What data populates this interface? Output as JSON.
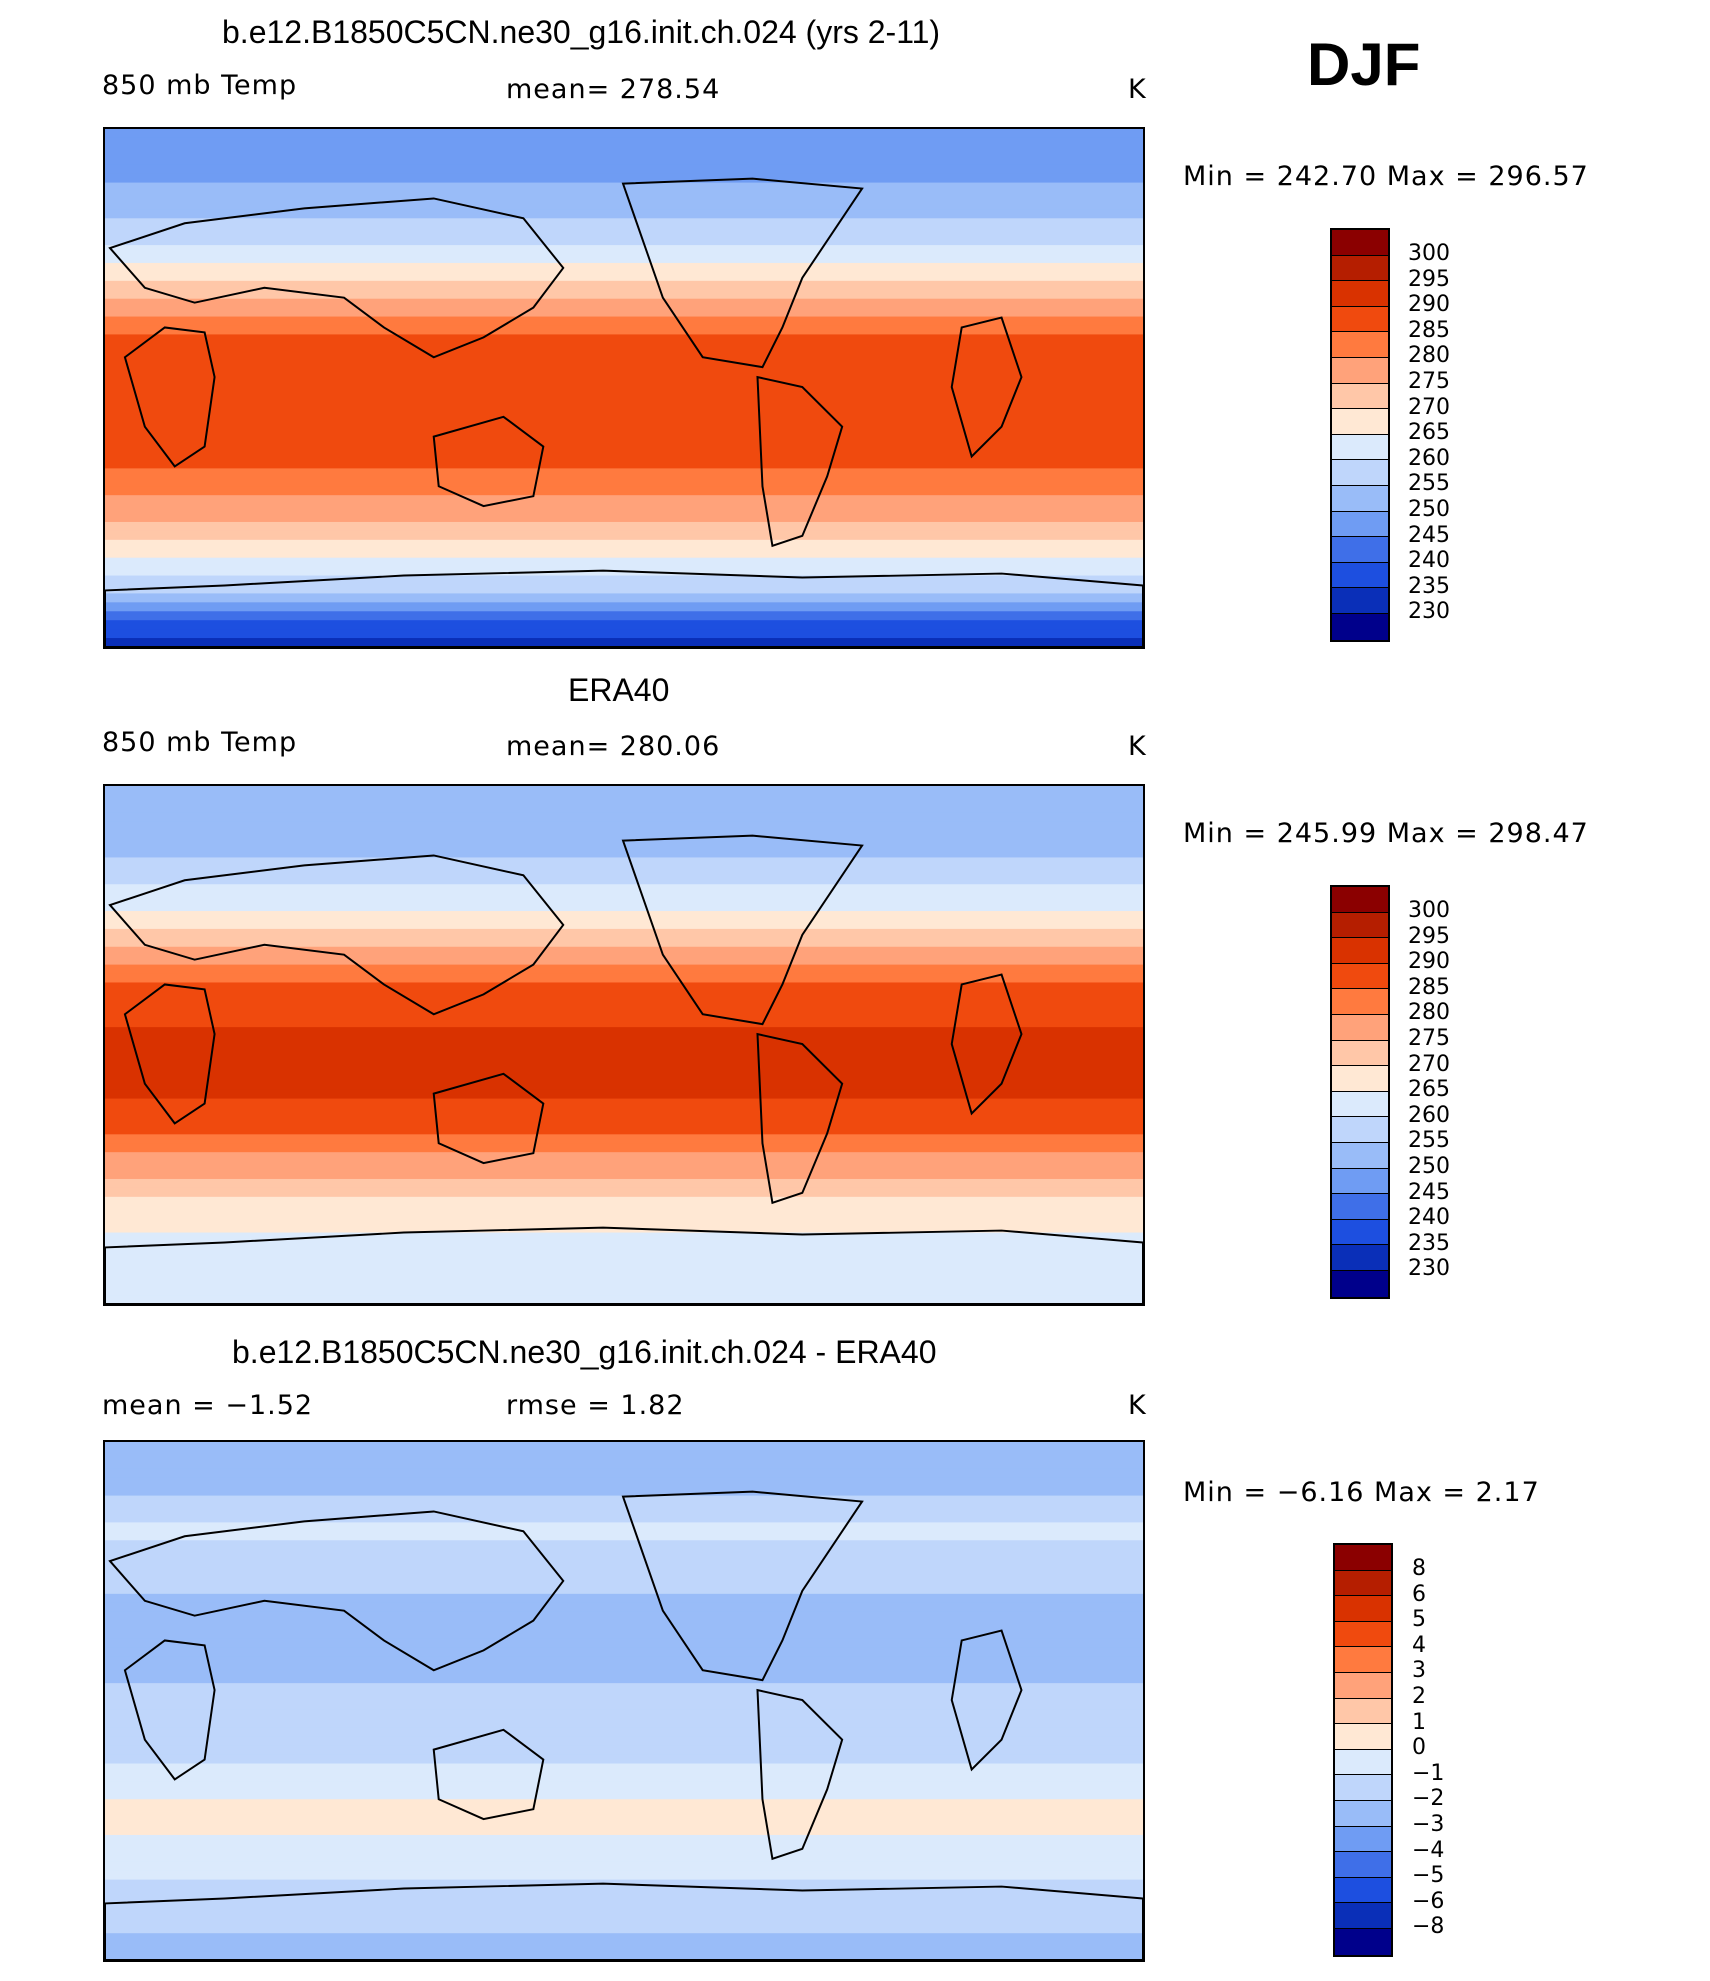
{
  "season": "DJF",
  "chart_data": [
    {
      "type": "heatmap",
      "title": "b.e12.B1850C5CN.ne30_g16.init.ch.024 (yrs 2-11)",
      "left_label": "850 mb Temp",
      "stat_label": "mean=  278.54",
      "units": "K",
      "minmax": "Min  =  242.70  Max  =  296.57",
      "min": 242.7,
      "max": 296.57,
      "mean": 278.54,
      "levels": [
        "300",
        "295",
        "290",
        "285",
        "280",
        "275",
        "270",
        "265",
        "260",
        "255",
        "250",
        "245",
        "240",
        "235",
        "230"
      ],
      "colors": [
        "#8b0000",
        "#b51e00",
        "#d93200",
        "#f04a0e",
        "#ff7a3f",
        "#ffa27a",
        "#ffc7a8",
        "#ffe8d4",
        "#dbeafc",
        "#bfd6fb",
        "#99bcf8",
        "#6f9cf3",
        "#3f6fe8",
        "#1d4fe0",
        "#0a2fb8",
        "#00008b"
      ],
      "lat_profile": [
        [
          -90,
          230
        ],
        [
          -75,
          248
        ],
        [
          -65,
          262
        ],
        [
          -55,
          268
        ],
        [
          -45,
          275
        ],
        [
          -35,
          282
        ],
        [
          -25,
          287
        ],
        [
          -15,
          289
        ],
        [
          0,
          289
        ],
        [
          15,
          287
        ],
        [
          25,
          281
        ],
        [
          35,
          273
        ],
        [
          45,
          264
        ],
        [
          55,
          257
        ],
        [
          65,
          252
        ],
        [
          75,
          249
        ],
        [
          90,
          248
        ]
      ]
    },
    {
      "type": "heatmap",
      "title": "ERA40",
      "left_label": "850 mb Temp",
      "stat_label": "mean=  280.06",
      "units": "K",
      "minmax": "Min  =  245.99  Max  =  298.47",
      "min": 245.99,
      "max": 298.47,
      "mean": 280.06,
      "levels": [
        "300",
        "295",
        "290",
        "285",
        "280",
        "275",
        "270",
        "265",
        "260",
        "255",
        "250",
        "245",
        "240",
        "235",
        "230"
      ],
      "colors": [
        "#8b0000",
        "#b51e00",
        "#d93200",
        "#f04a0e",
        "#ff7a3f",
        "#ffa27a",
        "#ffc7a8",
        "#ffe8d4",
        "#dbeafc",
        "#bfd6fb",
        "#99bcf8",
        "#6f9cf3",
        "#3f6fe8",
        "#1d4fe0",
        "#0a2fb8",
        "#00008b"
      ],
      "lat_profile": [
        [
          -90,
          262
        ],
        [
          -70,
          263
        ],
        [
          -55,
          268
        ],
        [
          -45,
          275
        ],
        [
          -35,
          283
        ],
        [
          -25,
          289
        ],
        [
          -15,
          291
        ],
        [
          0,
          291
        ],
        [
          15,
          289
        ],
        [
          25,
          283
        ],
        [
          35,
          275
        ],
        [
          45,
          267
        ],
        [
          55,
          260
        ],
        [
          65,
          255
        ],
        [
          75,
          251
        ],
        [
          90,
          250
        ]
      ]
    },
    {
      "type": "heatmap",
      "title": "b.e12.B1850C5CN.ne30_g16.init.ch.024 - ERA40",
      "left_label": "mean  =    −1.52",
      "stat_label": "rmse  =     1.82",
      "units": "K",
      "minmax": "Min  =    −6.16  Max  =     2.17",
      "min": -6.16,
      "max": 2.17,
      "mean": -1.52,
      "rmse": 1.82,
      "levels": [
        "8",
        "6",
        "5",
        "4",
        "3",
        "2",
        "1",
        "0",
        "−1",
        "−2",
        "−3",
        "−4",
        "−5",
        "−6",
        "−8"
      ],
      "colors": [
        "#8b0000",
        "#b51e00",
        "#d93200",
        "#f04a0e",
        "#ff7a3f",
        "#ffa27a",
        "#ffc7a8",
        "#ffe8d4",
        "#dbeafc",
        "#bfd6fb",
        "#99bcf8",
        "#6f9cf3",
        "#3f6fe8",
        "#1d4fe0",
        "#0a2fb8",
        "#00008b"
      ],
      "lat_profile": [
        [
          -90,
          -2.5
        ],
        [
          -70,
          -1.5
        ],
        [
          -55,
          -0.5
        ],
        [
          -40,
          0.5
        ],
        [
          -30,
          -0.5
        ],
        [
          -15,
          -1.5
        ],
        [
          0,
          -1.8
        ],
        [
          15,
          -2.2
        ],
        [
          30,
          -2.5
        ],
        [
          45,
          -1.5
        ],
        [
          60,
          -0.8
        ],
        [
          75,
          -2.5
        ],
        [
          90,
          -3
        ]
      ]
    }
  ]
}
